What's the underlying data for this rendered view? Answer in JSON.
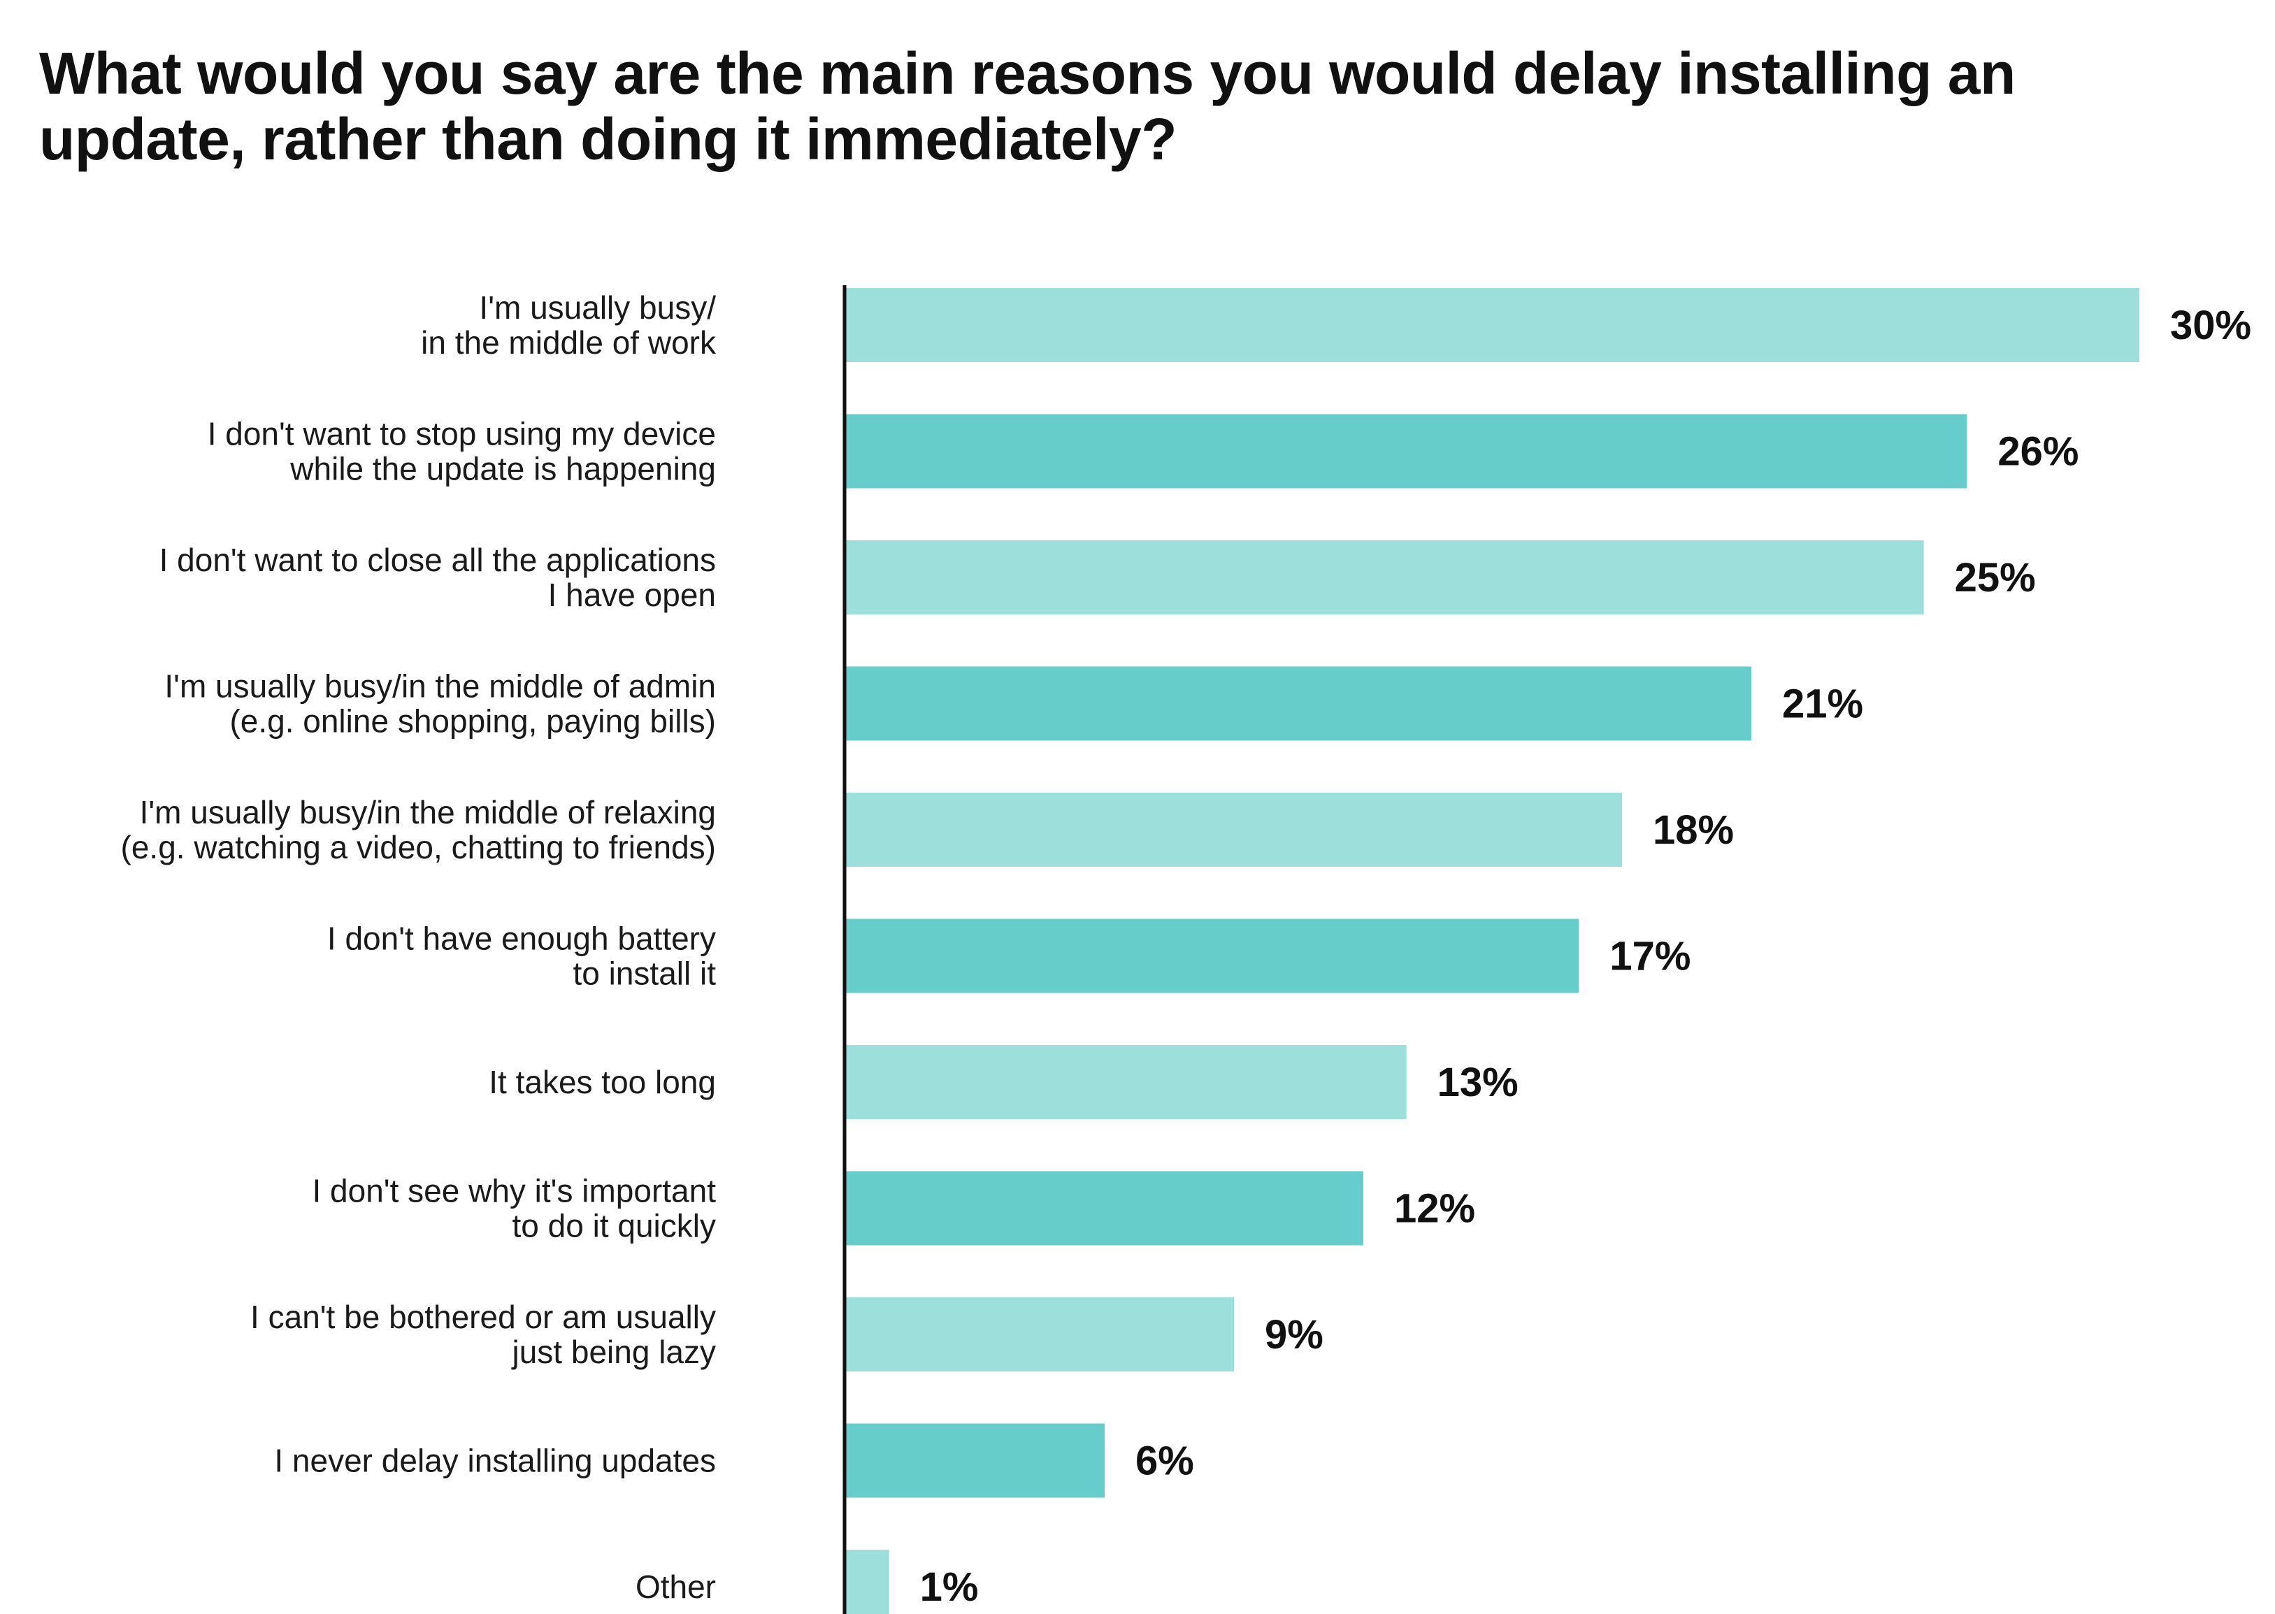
{
  "chart_data": {
    "type": "bar",
    "orientation": "horizontal",
    "title": "What would you say are the main reasons you would delay installing an update, rather than doing it immediately?",
    "xlabel": "",
    "ylabel": "",
    "xlim": [
      0,
      30
    ],
    "grid": false,
    "legend": "none",
    "value_suffix": "%",
    "categories": [
      [
        "I'm usually busy/",
        "in the middle of work"
      ],
      [
        "I don't want to stop using my device",
        "while the update is happening"
      ],
      [
        "I don't want to close all the applications",
        "I have open"
      ],
      [
        "I'm usually busy/in the middle of admin",
        "(e.g. online shopping, paying bills)"
      ],
      [
        "I'm usually busy/in the middle of relaxing",
        "(e.g. watching a video, chatting to friends)"
      ],
      [
        "I don't have enough battery",
        "to install it"
      ],
      [
        "It takes too long"
      ],
      [
        "I don't see why it's important",
        "to do it quickly"
      ],
      [
        "I can't be bothered or am usually",
        "just being lazy"
      ],
      [
        "I never delay installing updates"
      ],
      [
        "Other"
      ]
    ],
    "values": [
      30,
      26,
      25,
      21,
      18,
      17,
      13,
      12,
      9,
      6,
      1
    ],
    "value_labels": [
      "30%",
      "26%",
      "25%",
      "21%",
      "18%",
      "17%",
      "13%",
      "12%",
      "9%",
      "6%",
      "1%"
    ],
    "colors": {
      "light": "#9cdfdb",
      "dark": "#66cdcb",
      "axis": "#111111"
    }
  }
}
